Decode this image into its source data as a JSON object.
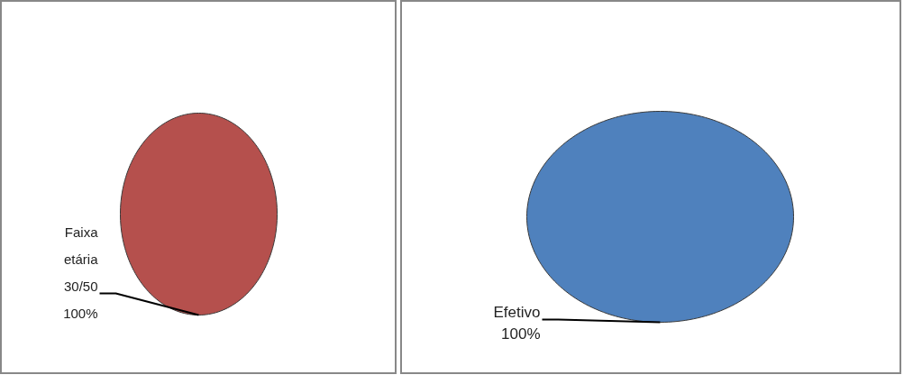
{
  "chart_data": [
    {
      "type": "pie",
      "categories": [
        "Faixa etária 30/50"
      ],
      "values": [
        100
      ],
      "colors": [
        "#b5504d"
      ],
      "value_labels": [
        "100%"
      ]
    },
    {
      "type": "pie",
      "categories": [
        "Efetivo"
      ],
      "values": [
        100
      ],
      "colors": [
        "#4f81bd"
      ],
      "value_labels": [
        "100%"
      ]
    }
  ]
}
